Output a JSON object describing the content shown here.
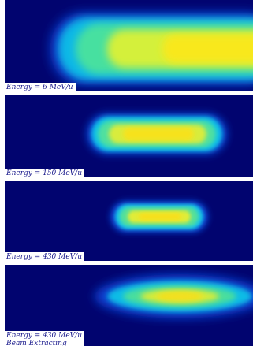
{
  "figure": {
    "panels": [
      {
        "caption": [
          "Energy = 6 MeV/u"
        ]
      },
      {
        "caption": [
          "Energy = 150 MeV/u"
        ]
      },
      {
        "caption": [
          "Energy = 430 MeV/u"
        ]
      },
      {
        "caption": [
          "Energy = 430 MeV/u",
          "Beam Extracting"
        ]
      }
    ]
  }
}
